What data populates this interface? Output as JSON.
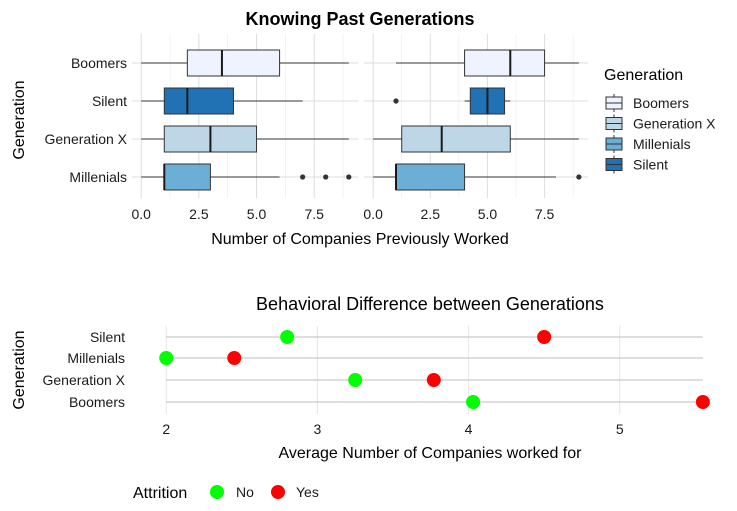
{
  "chart_data": [
    {
      "type": "boxplot",
      "title": "Knowing Past Generations",
      "xlabel": "Number of Companies Previously Worked",
      "ylabel": "Generation",
      "categories": [
        "Boomers",
        "Silent",
        "Generation X",
        "Millenials"
      ],
      "x_ticks": [
        "0.0",
        "2.5",
        "5.0",
        "7.5"
      ],
      "xlim": [
        -0.4,
        9.4
      ],
      "legend": {
        "title": "Generation",
        "placement": "right",
        "items": [
          {
            "label": "Boomers",
            "color": "#eff3ff"
          },
          {
            "label": "Generation X",
            "color": "#bdd7e7"
          },
          {
            "label": "Millenials",
            "color": "#6baed6"
          },
          {
            "label": "Silent",
            "color": "#2171b5"
          }
        ]
      },
      "panels": [
        {
          "boxes": [
            {
              "category": "Boomers",
              "min": 0,
              "q1": 2,
              "median": 3.5,
              "q3": 6,
              "max": 9,
              "outliers": [],
              "color": "#eff3ff"
            },
            {
              "category": "Silent",
              "min": 0,
              "q1": 1,
              "median": 2,
              "q3": 4,
              "max": 7,
              "outliers": [],
              "color": "#2171b5"
            },
            {
              "category": "Generation X",
              "min": 0,
              "q1": 1,
              "median": 3,
              "q3": 5,
              "max": 9,
              "outliers": [],
              "color": "#bdd7e7"
            },
            {
              "category": "Millenials",
              "min": 0,
              "q1": 1,
              "median": 1,
              "q3": 3,
              "max": 6,
              "outliers": [
                7,
                8,
                9
              ],
              "color": "#6baed6"
            }
          ]
        },
        {
          "boxes": [
            {
              "category": "Boomers",
              "min": 1,
              "q1": 4,
              "median": 6,
              "q3": 7.5,
              "max": 9,
              "outliers": [],
              "color": "#eff3ff"
            },
            {
              "category": "Silent",
              "min": 4,
              "q1": 4.25,
              "median": 5,
              "q3": 5.75,
              "max": 6,
              "outliers": [
                1
              ],
              "color": "#2171b5"
            },
            {
              "category": "Generation X",
              "min": 0,
              "q1": 1.25,
              "median": 3,
              "q3": 6,
              "max": 9,
              "outliers": [],
              "color": "#bdd7e7"
            },
            {
              "category": "Millenials",
              "min": 0,
              "q1": 1,
              "median": 1,
              "q3": 4,
              "max": 8,
              "outliers": [
                9
              ],
              "color": "#6baed6"
            }
          ]
        }
      ]
    },
    {
      "type": "scatter",
      "title": "Behavioral Difference between Generations",
      "xlabel": "Average Number of Companies worked for",
      "ylabel": "Generation",
      "categories": [
        "Silent",
        "Millenials",
        "Generation X",
        "Boomers"
      ],
      "x_ticks": [
        2,
        3,
        4,
        5
      ],
      "xlim": [
        1.8,
        5.65
      ],
      "legend": {
        "title": "Attrition",
        "placement": "bottom",
        "items": [
          {
            "label": "No",
            "color": "#00ff00"
          },
          {
            "label": "Yes",
            "color": "#ff0000"
          }
        ]
      },
      "series": [
        {
          "name": "No",
          "color": "#00ff00",
          "points": [
            {
              "category": "Silent",
              "x": 2.8
            },
            {
              "category": "Millenials",
              "x": 2.0
            },
            {
              "category": "Generation X",
              "x": 3.25
            },
            {
              "category": "Boomers",
              "x": 4.03
            }
          ]
        },
        {
          "name": "Yes",
          "color": "#ff0000",
          "points": [
            {
              "category": "Silent",
              "x": 4.5
            },
            {
              "category": "Millenials",
              "x": 2.45
            },
            {
              "category": "Generation X",
              "x": 3.77
            },
            {
              "category": "Boomers",
              "x": 5.55
            }
          ]
        }
      ]
    }
  ]
}
